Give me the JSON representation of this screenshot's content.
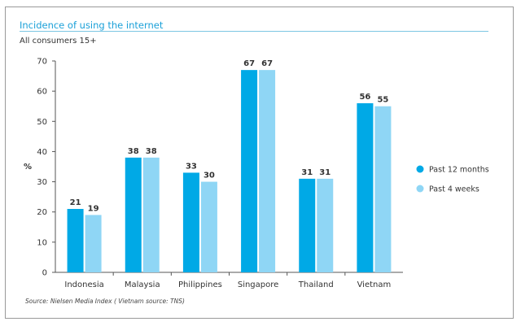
{
  "chart_data": {
    "type": "bar",
    "title": "Incidence of using the internet",
    "subtitle": "All consumers 15+",
    "ylabel": "%",
    "xlabel": "",
    "ylim": [
      0,
      70
    ],
    "yticks": [
      0,
      10,
      20,
      30,
      40,
      50,
      60,
      70
    ],
    "grid": false,
    "legend_position": "right",
    "categories": [
      "Indonesia",
      "Malaysia",
      "Philippines",
      "Singapore",
      "Thailand",
      "Vietnam"
    ],
    "series": [
      {
        "name": "Past 12 months",
        "color": "#00a9e6",
        "values": [
          21,
          38,
          33,
          67,
          31,
          56
        ]
      },
      {
        "name": "Past 4 weeks",
        "color": "#8fd6f5",
        "values": [
          19,
          38,
          30,
          67,
          31,
          55
        ]
      }
    ],
    "source": "Source: Nielsen Media Index ( Vietnam source: TNS)"
  }
}
